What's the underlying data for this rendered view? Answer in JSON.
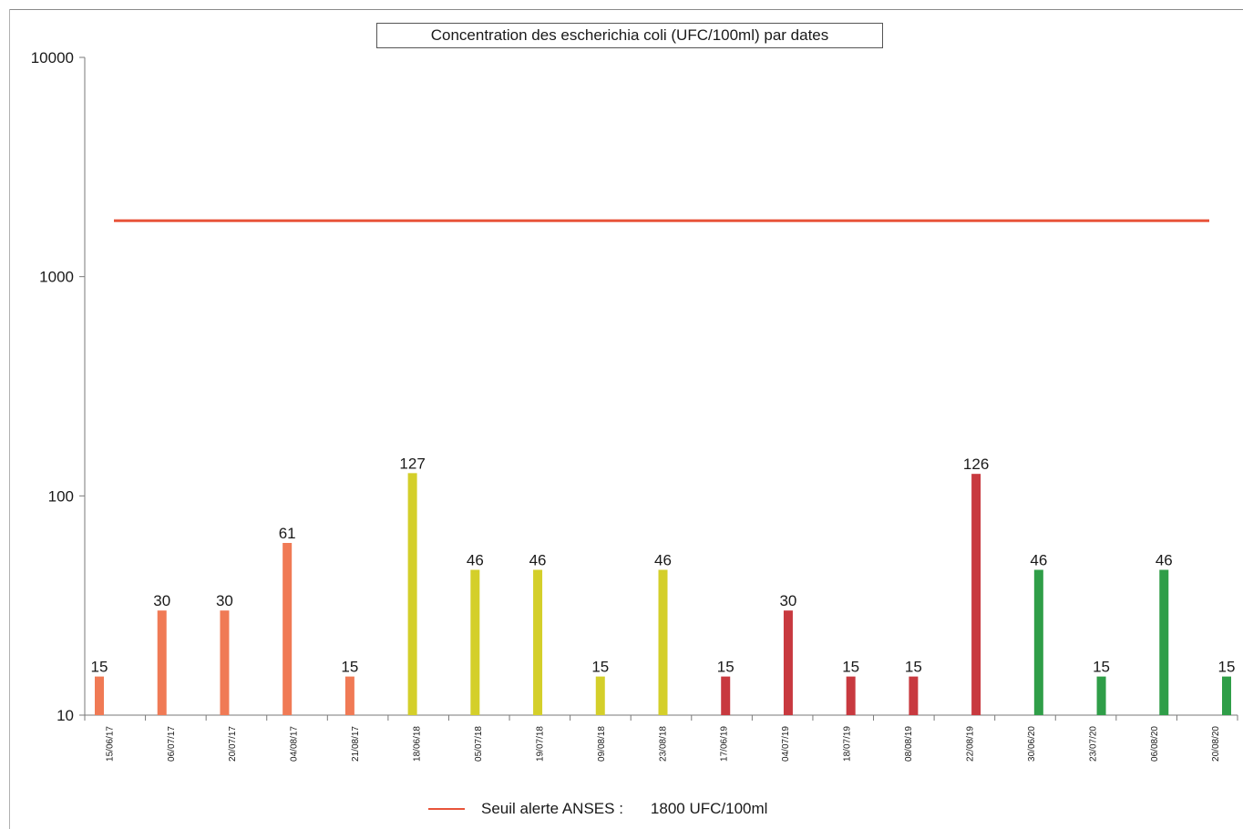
{
  "chart_data": {
    "type": "bar",
    "title": "Concentration des escherichia coli (UFC/100ml)  par dates",
    "xlabel": "",
    "ylabel": "",
    "yscale": "log",
    "ylim": [
      10,
      10000
    ],
    "yticks": [
      "10000",
      "1000",
      "100",
      "10"
    ],
    "grid": false,
    "categories": [
      "15/06/17",
      "06/07/17",
      "20/07/17",
      "04/08/17",
      "21/08/17",
      "18/06/18",
      "05/07/18",
      "19/07/18",
      "09/08/18",
      "23/08/18",
      "17/06/19",
      "04/07/19",
      "18/07/19",
      "08/08/19",
      "22/08/19",
      "30/06/20",
      "23/07/20",
      "06/08/20",
      "20/08/20"
    ],
    "values": [
      15,
      30,
      30,
      61,
      15,
      127,
      46,
      46,
      15,
      46,
      15,
      30,
      15,
      15,
      126,
      46,
      15,
      46,
      15
    ],
    "colors": [
      "#f07a55",
      "#f07a55",
      "#f07a55",
      "#f07a55",
      "#f07a55",
      "#d4cf2a",
      "#d4cf2a",
      "#d4cf2a",
      "#d4cf2a",
      "#d4cf2a",
      "#c8393f",
      "#c8393f",
      "#c8393f",
      "#c8393f",
      "#c8393f",
      "#2f9e48",
      "#2f9e48",
      "#2f9e48",
      "#2f9e48"
    ],
    "threshold": {
      "value": 1800,
      "color": "#e8543a",
      "legend_label": "Seuil alerte ANSES :",
      "legend_value": "1800  UFC/100ml"
    },
    "legend_position": "bottom-center"
  }
}
